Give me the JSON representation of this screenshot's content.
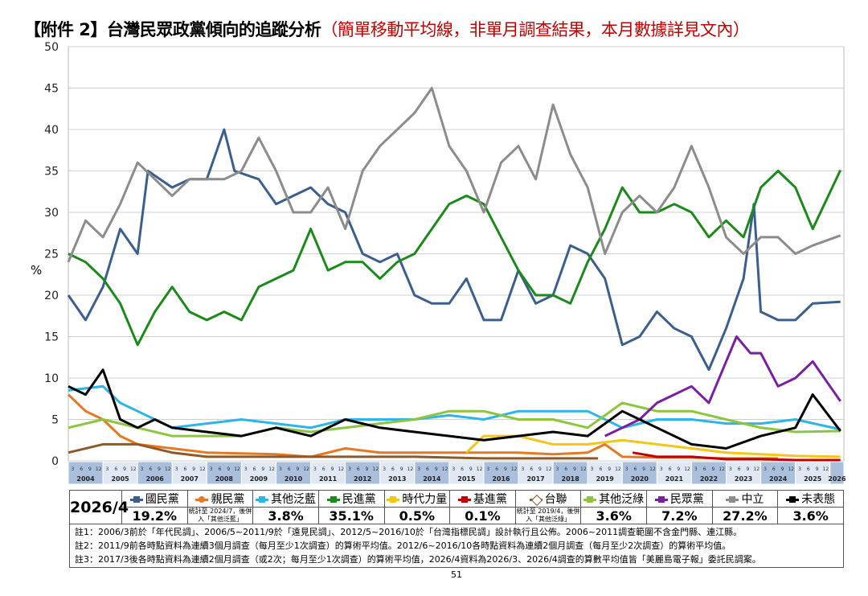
{
  "title": {
    "main": "【附件 2】台灣民眾政黨傾向的追蹤分析",
    "sub": "（簡單移動平均線，非單月調查結果，本月數據詳見文內）"
  },
  "chart_data": {
    "type": "line",
    "ylabel": "%",
    "ylim": [
      0,
      50
    ],
    "yticks": [
      0,
      5,
      10,
      15,
      20,
      25,
      30,
      35,
      40,
      45,
      50
    ],
    "xlim": [
      2004,
      2026.4
    ],
    "grid": true,
    "years": [
      "2004",
      "2005",
      "2006",
      "2007",
      "2008",
      "2009",
      "2010",
      "2011",
      "2012",
      "2013",
      "2014",
      "2015",
      "2016",
      "2017",
      "2018",
      "2019",
      "2020",
      "2021",
      "2022",
      "2023",
      "2024",
      "2025",
      "2026"
    ],
    "month_ticks": [
      "3",
      "6",
      "9",
      "12"
    ],
    "series": [
      {
        "name": "國民黨",
        "color": "#3a5f8f",
        "marker": "square",
        "points": [
          [
            2004,
            20
          ],
          [
            2004.5,
            17
          ],
          [
            2005,
            21
          ],
          [
            2005.5,
            28
          ],
          [
            2006,
            25
          ],
          [
            2006.3,
            35
          ],
          [
            2007,
            33
          ],
          [
            2007.5,
            34
          ],
          [
            2008,
            34
          ],
          [
            2008.5,
            40
          ],
          [
            2008.8,
            35
          ],
          [
            2009.5,
            34
          ],
          [
            2010,
            31
          ],
          [
            2010.5,
            32
          ],
          [
            2011,
            33
          ],
          [
            2011.5,
            31
          ],
          [
            2012,
            30
          ],
          [
            2012.5,
            25
          ],
          [
            2013,
            24
          ],
          [
            2013.5,
            25
          ],
          [
            2014,
            20
          ],
          [
            2014.5,
            19
          ],
          [
            2015,
            19
          ],
          [
            2015.5,
            22
          ],
          [
            2016,
            17
          ],
          [
            2016.5,
            17
          ],
          [
            2017,
            23
          ],
          [
            2017.5,
            19
          ],
          [
            2018,
            20
          ],
          [
            2018.5,
            26
          ],
          [
            2019,
            25
          ],
          [
            2019.5,
            22
          ],
          [
            2020,
            14
          ],
          [
            2020.5,
            15
          ],
          [
            2021,
            18
          ],
          [
            2021.5,
            16
          ],
          [
            2022,
            15
          ],
          [
            2022.5,
            11
          ],
          [
            2023,
            16
          ],
          [
            2023.5,
            22
          ],
          [
            2023.8,
            31
          ],
          [
            2024,
            18
          ],
          [
            2024.5,
            17
          ],
          [
            2025,
            17
          ],
          [
            2025.5,
            19
          ],
          [
            2026.3,
            19.2
          ]
        ]
      },
      {
        "name": "親民黨",
        "color": "#e87722",
        "marker": "circle",
        "points": [
          [
            2004,
            8
          ],
          [
            2004.5,
            6
          ],
          [
            2005,
            5
          ],
          [
            2005.5,
            3
          ],
          [
            2006,
            2
          ],
          [
            2007,
            1.5
          ],
          [
            2008,
            1
          ],
          [
            2010,
            0.8
          ],
          [
            2011,
            0.5
          ],
          [
            2012,
            1.5
          ],
          [
            2013,
            1
          ],
          [
            2014,
            1
          ],
          [
            2015,
            1
          ],
          [
            2016,
            1
          ],
          [
            2017,
            1
          ],
          [
            2018,
            0.8
          ],
          [
            2019,
            1
          ],
          [
            2019.5,
            2
          ],
          [
            2020,
            0.5
          ],
          [
            2021,
            0.4
          ],
          [
            2022,
            0.4
          ],
          [
            2023,
            0.3
          ],
          [
            2024.5,
            0.3
          ]
        ]
      },
      {
        "name": "其他泛藍",
        "color": "#2bb5e8",
        "marker": "cross",
        "points": [
          [
            2004,
            8.5
          ],
          [
            2005,
            9
          ],
          [
            2005.5,
            7
          ],
          [
            2006,
            6
          ],
          [
            2006.5,
            5
          ],
          [
            2007,
            4
          ],
          [
            2008,
            4.5
          ],
          [
            2009,
            5
          ],
          [
            2010,
            4.5
          ],
          [
            2011,
            4
          ],
          [
            2012,
            5
          ],
          [
            2013,
            5
          ],
          [
            2014,
            5
          ],
          [
            2015,
            5.5
          ],
          [
            2016,
            5
          ],
          [
            2017,
            6
          ],
          [
            2018,
            6
          ],
          [
            2019,
            6
          ],
          [
            2020,
            4
          ],
          [
            2021,
            5
          ],
          [
            2022,
            5
          ],
          [
            2023,
            4.5
          ],
          [
            2024,
            4.5
          ],
          [
            2025,
            5
          ],
          [
            2026.3,
            3.8
          ]
        ]
      },
      {
        "name": "民進黨",
        "color": "#1a8a1a",
        "marker": "square",
        "points": [
          [
            2004,
            25
          ],
          [
            2004.5,
            24
          ],
          [
            2005,
            22
          ],
          [
            2005.5,
            19
          ],
          [
            2006,
            14
          ],
          [
            2006.5,
            18
          ],
          [
            2007,
            21
          ],
          [
            2007.5,
            18
          ],
          [
            2008,
            17
          ],
          [
            2008.5,
            18
          ],
          [
            2009,
            17
          ],
          [
            2009.5,
            21
          ],
          [
            2010,
            22
          ],
          [
            2010.5,
            23
          ],
          [
            2011,
            28
          ],
          [
            2011.5,
            23
          ],
          [
            2012,
            24
          ],
          [
            2012.5,
            24
          ],
          [
            2013,
            22
          ],
          [
            2013.5,
            24
          ],
          [
            2014,
            25
          ],
          [
            2014.5,
            28
          ],
          [
            2015,
            31
          ],
          [
            2015.5,
            32
          ],
          [
            2016,
            31
          ],
          [
            2016.5,
            27
          ],
          [
            2017,
            23
          ],
          [
            2017.5,
            20
          ],
          [
            2018,
            20
          ],
          [
            2018.5,
            19
          ],
          [
            2019,
            24
          ],
          [
            2019.5,
            28
          ],
          [
            2020,
            33
          ],
          [
            2020.5,
            30
          ],
          [
            2021,
            30
          ],
          [
            2021.5,
            31
          ],
          [
            2022,
            30
          ],
          [
            2022.5,
            27
          ],
          [
            2023,
            29
          ],
          [
            2023.5,
            27
          ],
          [
            2024,
            33
          ],
          [
            2024.5,
            35
          ],
          [
            2025,
            33
          ],
          [
            2025.5,
            28
          ],
          [
            2026.3,
            35.1
          ]
        ]
      },
      {
        "name": "時代力量",
        "color": "#f5c518",
        "marker": "cross",
        "points": [
          [
            2015.5,
            1
          ],
          [
            2016,
            3
          ],
          [
            2017,
            3
          ],
          [
            2018,
            2
          ],
          [
            2019,
            2
          ],
          [
            2020,
            2.5
          ],
          [
            2021,
            2
          ],
          [
            2022,
            1.5
          ],
          [
            2023,
            1
          ],
          [
            2024,
            0.8
          ],
          [
            2025,
            0.6
          ],
          [
            2026.3,
            0.5
          ]
        ]
      },
      {
        "name": "基進黨",
        "color": "#c00000",
        "marker": "square",
        "points": [
          [
            2020.3,
            1
          ],
          [
            2021,
            0.5
          ],
          [
            2022,
            0.5
          ],
          [
            2023,
            0.2
          ],
          [
            2024,
            0.2
          ],
          [
            2025,
            0.1
          ],
          [
            2026.3,
            0.1
          ]
        ]
      },
      {
        "name": "台聯",
        "color": "#8b5a2b",
        "marker": "diamond",
        "points": [
          [
            2004,
            1
          ],
          [
            2005,
            2
          ],
          [
            2006,
            2
          ],
          [
            2007,
            1
          ],
          [
            2008,
            0.5
          ],
          [
            2010,
            0.5
          ],
          [
            2012,
            0.5
          ],
          [
            2014,
            0.5
          ],
          [
            2016,
            0.3
          ],
          [
            2018,
            0.3
          ],
          [
            2019.3,
            0.3
          ]
        ]
      },
      {
        "name": "其他泛綠",
        "color": "#8cc63f",
        "marker": "cross",
        "points": [
          [
            2004,
            4
          ],
          [
            2005,
            5
          ],
          [
            2006,
            4
          ],
          [
            2007,
            3
          ],
          [
            2008,
            3
          ],
          [
            2009,
            3
          ],
          [
            2010,
            4
          ],
          [
            2011,
            3.5
          ],
          [
            2012,
            4
          ],
          [
            2013,
            4.5
          ],
          [
            2014,
            5
          ],
          [
            2015,
            6
          ],
          [
            2016,
            6
          ],
          [
            2017,
            5
          ],
          [
            2018,
            5
          ],
          [
            2019,
            4
          ],
          [
            2020,
            7
          ],
          [
            2021,
            6
          ],
          [
            2022,
            6
          ],
          [
            2023,
            5
          ],
          [
            2024,
            4
          ],
          [
            2025,
            3.5
          ],
          [
            2026.3,
            3.6
          ]
        ]
      },
      {
        "name": "民眾黨",
        "color": "#7b1fa2",
        "marker": "cross",
        "points": [
          [
            2019.5,
            3
          ],
          [
            2020,
            4
          ],
          [
            2020.5,
            5
          ],
          [
            2021,
            7
          ],
          [
            2021.5,
            8
          ],
          [
            2022,
            9
          ],
          [
            2022.5,
            7
          ],
          [
            2023,
            12
          ],
          [
            2023.3,
            15
          ],
          [
            2023.7,
            13
          ],
          [
            2024,
            13
          ],
          [
            2024.5,
            9
          ],
          [
            2025,
            10
          ],
          [
            2025.5,
            12
          ],
          [
            2026.3,
            7.2
          ]
        ]
      },
      {
        "name": "中立",
        "color": "#8c8c8c",
        "marker": "triangle",
        "points": [
          [
            2004,
            24
          ],
          [
            2004.5,
            29
          ],
          [
            2005,
            27
          ],
          [
            2005.5,
            31
          ],
          [
            2006,
            36
          ],
          [
            2006.5,
            34
          ],
          [
            2007,
            32
          ],
          [
            2007.5,
            34
          ],
          [
            2008,
            34
          ],
          [
            2008.5,
            34
          ],
          [
            2009,
            35
          ],
          [
            2009.5,
            39
          ],
          [
            2010,
            35
          ],
          [
            2010.5,
            30
          ],
          [
            2011,
            30
          ],
          [
            2011.5,
            33
          ],
          [
            2012,
            28
          ],
          [
            2012.5,
            35
          ],
          [
            2013,
            38
          ],
          [
            2013.5,
            40
          ],
          [
            2014,
            42
          ],
          [
            2014.5,
            45
          ],
          [
            2015,
            38
          ],
          [
            2015.5,
            35
          ],
          [
            2016,
            30
          ],
          [
            2016.5,
            36
          ],
          [
            2017,
            38
          ],
          [
            2017.5,
            34
          ],
          [
            2018,
            43
          ],
          [
            2018.5,
            37
          ],
          [
            2019,
            33
          ],
          [
            2019.5,
            25
          ],
          [
            2020,
            30
          ],
          [
            2020.5,
            32
          ],
          [
            2021,
            30
          ],
          [
            2021.5,
            33
          ],
          [
            2022,
            38
          ],
          [
            2022.5,
            33
          ],
          [
            2023,
            27
          ],
          [
            2023.5,
            25
          ],
          [
            2024,
            27
          ],
          [
            2024.5,
            27
          ],
          [
            2025,
            25
          ],
          [
            2025.5,
            26
          ],
          [
            2026.3,
            27.2
          ]
        ]
      },
      {
        "name": "未表態",
        "color": "#000000",
        "marker": "triangle",
        "points": [
          [
            2004,
            9
          ],
          [
            2004.5,
            8
          ],
          [
            2005,
            11
          ],
          [
            2005.5,
            5
          ],
          [
            2006,
            4
          ],
          [
            2006.5,
            5
          ],
          [
            2007,
            4
          ],
          [
            2008,
            3.5
          ],
          [
            2009,
            3
          ],
          [
            2010,
            4
          ],
          [
            2011,
            3
          ],
          [
            2012,
            5
          ],
          [
            2013,
            4
          ],
          [
            2014,
            3.5
          ],
          [
            2015,
            3
          ],
          [
            2016,
            2.5
          ],
          [
            2017,
            3
          ],
          [
            2018,
            3.5
          ],
          [
            2019,
            3
          ],
          [
            2020,
            6
          ],
          [
            2020.5,
            5
          ],
          [
            2021,
            4
          ],
          [
            2022,
            2
          ],
          [
            2023,
            1.5
          ],
          [
            2024,
            3
          ],
          [
            2025,
            4
          ],
          [
            2025.5,
            8
          ],
          [
            2026.3,
            3.6
          ]
        ]
      }
    ]
  },
  "legend": {
    "date": "2026/4",
    "values": [
      "19.2%",
      "統計至 2024/7，後併入「其他泛藍」",
      "3.8%",
      "35.1%",
      "0.5%",
      "0.1%",
      "統計至 2019/4，後併入「其他泛綠」",
      "3.6%",
      "7.2%",
      "27.2%",
      "3.6%"
    ]
  },
  "notes": [
    "註1：2006/3前於「年代民調」、2006/5~2011/9於「遠見民調」、2012/5~2016/10於「台灣指標民調」設計執行且公佈。2006~2011調查範圍不含金門縣、連江縣。",
    "註2：2011/9前各時點資料為連續3個月調查（每月至少1次調查）的算術平均值。2012/6~2016/10各時點資料為連續2個月調查（每月至少2次調查）的算術平均值。",
    "註3：2017/3後各時點資料為連續2個月調查（或2次；每月至少1次調查）的算術平均值，2026/4資料為2026/3、2026/4調查的算數平均值皆「美麗島電子報」委託民調案。"
  ],
  "page_number": "51"
}
